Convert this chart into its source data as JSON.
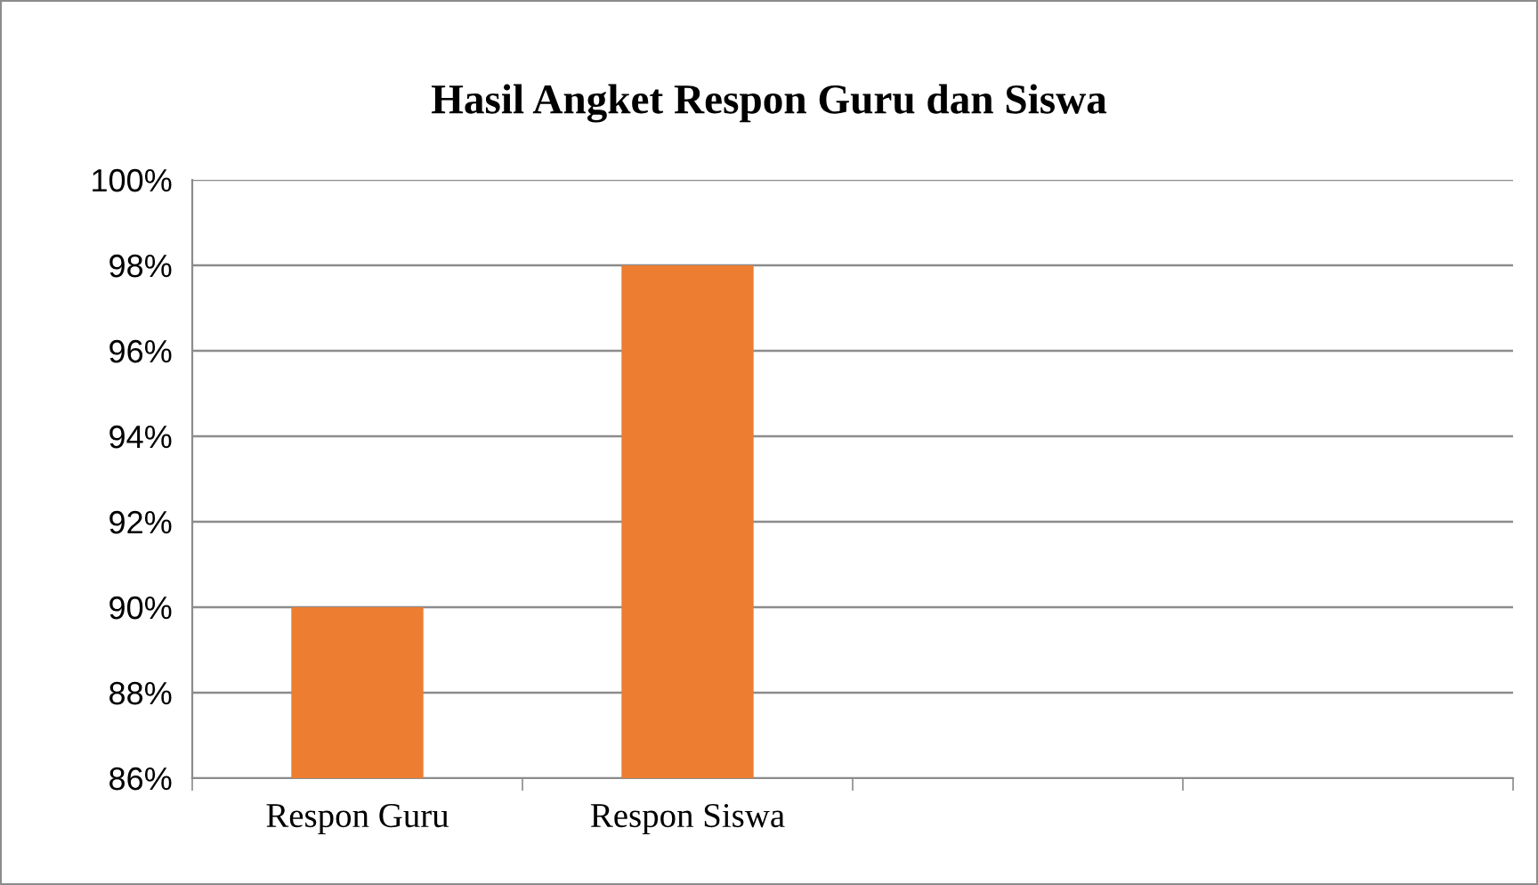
{
  "chart_data": {
    "type": "bar",
    "title": "Hasil Angket Respon Guru dan Siswa",
    "categories": [
      "Respon Guru",
      "Respon Siswa",
      null,
      null
    ],
    "values": [
      90,
      98,
      null,
      null
    ],
    "color": "#ed7d31",
    "ylim": [
      86,
      100
    ],
    "yticks": [
      {
        "value": 86,
        "label": "86%"
      },
      {
        "value": 88,
        "label": "88%"
      },
      {
        "value": 90,
        "label": "90%"
      },
      {
        "value": 92,
        "label": "92%"
      },
      {
        "value": 94,
        "label": "94%"
      },
      {
        "value": 96,
        "label": "96%"
      },
      {
        "value": 98,
        "label": "98%"
      },
      {
        "value": 100,
        "label": "100%"
      }
    ],
    "grid": "y",
    "legend": false
  }
}
